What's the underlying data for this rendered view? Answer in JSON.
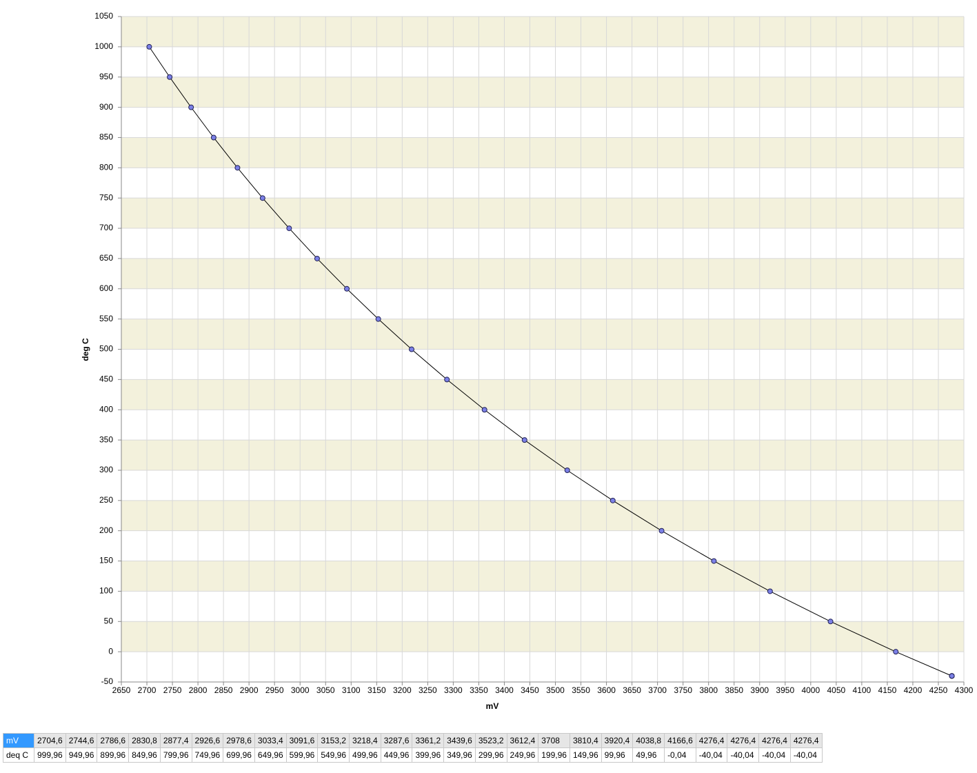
{
  "chart_data": {
    "type": "line",
    "x_label": "mV",
    "y_label": "deg C",
    "x": [
      2704.6,
      2744.6,
      2786.6,
      2830.8,
      2877.4,
      2926.6,
      2978.6,
      3033.4,
      3091.6,
      3153.2,
      3218.4,
      3287.6,
      3361.2,
      3439.6,
      3523.2,
      3612.4,
      3708,
      3810.4,
      3920.4,
      4038.8,
      4166.6,
      4276.4,
      4276.4,
      4276.4,
      4276.4
    ],
    "series": [
      {
        "color": "#7b80e6",
        "values": [
          999.96,
          949.96,
          899.96,
          849.96,
          799.96,
          749.96,
          699.96,
          649.96,
          599.96,
          549.96,
          499.96,
          449.96,
          399.96,
          349.96,
          299.96,
          249.96,
          199.96,
          149.96,
          99.96,
          49.96,
          -0.04,
          -40.04,
          -40.04,
          -40.04,
          -40.04
        ]
      }
    ],
    "xlim": [
      2650,
      4300
    ],
    "ylim": [
      -50,
      1050
    ],
    "xticks": [
      2650,
      2700,
      2750,
      2800,
      2850,
      2900,
      2950,
      3000,
      3050,
      3100,
      3150,
      3200,
      3250,
      3300,
      3350,
      3400,
      3450,
      3500,
      3550,
      3600,
      3650,
      3700,
      3750,
      3800,
      3850,
      3900,
      3950,
      4000,
      4050,
      4100,
      4150,
      4200,
      4250,
      4300
    ],
    "yticks": [
      -50,
      0,
      50,
      100,
      150,
      200,
      250,
      300,
      350,
      400,
      450,
      500,
      550,
      600,
      650,
      700,
      750,
      800,
      850,
      900,
      950,
      1000,
      1050
    ],
    "grid": true,
    "band_color": "#f3f1dc",
    "line_color": "#000000"
  },
  "table": {
    "rows": [
      [
        "mV",
        "2704,6",
        "2744,6",
        "2786,6",
        "2830,8",
        "2877,4",
        "2926,6",
        "2978,6",
        "3033,4",
        "3091,6",
        "3153,2",
        "3218,4",
        "3287,6",
        "3361,2",
        "3439,6",
        "3523,2",
        "3612,4",
        "3708",
        "3810,4",
        "3920,4",
        "4038,8",
        "4166,6",
        "4276,4",
        "4276,4",
        "4276,4",
        "4276,4"
      ],
      [
        "deq C",
        "999,96",
        "949,96",
        "899,96",
        "849,96",
        "799,96",
        "749,96",
        "699,96",
        "649,96",
        "599,96",
        "549,96",
        "499,96",
        "449,96",
        "399,96",
        "349,96",
        "299,96",
        "249,96",
        "199,96",
        "149,96",
        "99,96",
        "49,96",
        "-0,04",
        "-40,04",
        "-40,04",
        "-40,04",
        "-40,04"
      ]
    ]
  }
}
